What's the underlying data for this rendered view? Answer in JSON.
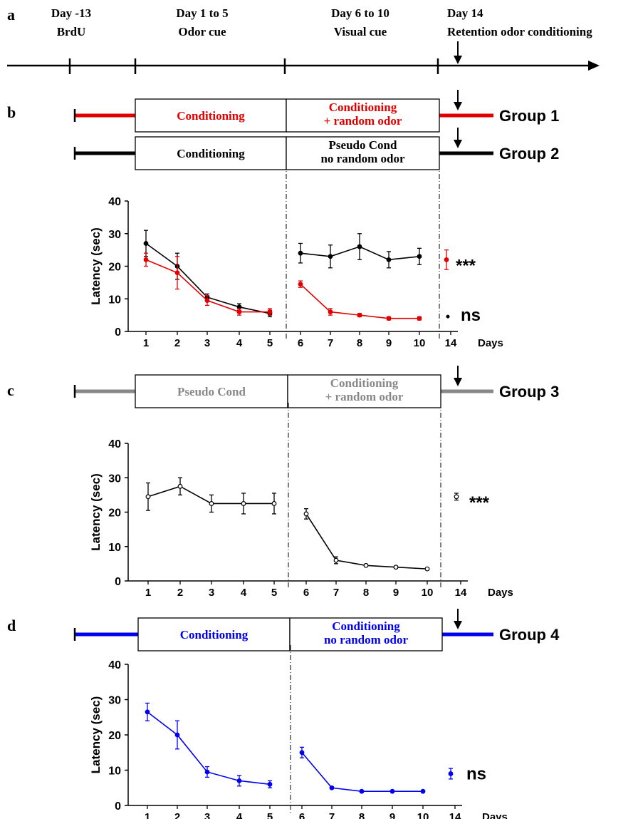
{
  "panel_labels": [
    "a",
    "b",
    "c",
    "d"
  ],
  "timeline": {
    "events": [
      {
        "line1": "Day -13",
        "line2": "BrdU"
      },
      {
        "line1": "Day 1 to  5",
        "line2": "Odor cue"
      },
      {
        "line1": "Day 6 to 10",
        "line2": "Visual cue"
      },
      {
        "line1": "Day 14",
        "line2": "Retention odor conditioning"
      }
    ]
  },
  "protocols": [
    {
      "group": "Group 1",
      "color": "#e00000",
      "text_color": "#e00000",
      "phase1": [
        "Conditioning"
      ],
      "phase2": [
        "Conditioning",
        "+ random odor"
      ]
    },
    {
      "group": "Group 2",
      "color": "#000000",
      "text_color": "#000000",
      "phase1": [
        "Conditioning"
      ],
      "phase2": [
        "Pseudo Cond",
        "no random odor"
      ]
    },
    {
      "group": "Group 3",
      "color": "#888888",
      "text_color": "#888888",
      "phase1": [
        "Pseudo Cond"
      ],
      "phase2": [
        "Conditioning",
        "+ random odor"
      ]
    },
    {
      "group": "Group 4",
      "color": "#0000ee",
      "text_color": "#0000ee",
      "phase1": [
        "Conditioning"
      ],
      "phase2": [
        "Conditioning",
        "no random odor"
      ]
    }
  ],
  "chart_data": [
    {
      "type": "line",
      "panel": "b",
      "ylabel": "Latency (sec)",
      "xlabel": "Days",
      "yticks": [
        0,
        10,
        20,
        30,
        40
      ],
      "ylim": [
        0,
        40
      ],
      "xticks": [
        "1",
        "2",
        "3",
        "4",
        "5",
        "6",
        "7",
        "8",
        "9",
        "10",
        "14"
      ],
      "series": [
        {
          "color": "#000000",
          "phase1": {
            "x": [
              1,
              2,
              3,
              4,
              5
            ],
            "y": [
              27,
              20,
              10.5,
              7.5,
              5.5
            ],
            "err": [
              4,
              4,
              1,
              1,
              1
            ]
          },
          "phase2": {
            "x": [
              6,
              7,
              8,
              9,
              10
            ],
            "y": [
              24,
              23,
              26,
              22,
              23
            ],
            "err": [
              3,
              3.5,
              4,
              2.5,
              2.5
            ]
          },
          "retention": {
            "x": 14,
            "y": 0,
            "err": 0
          }
        },
        {
          "color": "#e00000",
          "phase1": {
            "x": [
              1,
              2,
              3,
              4,
              5
            ],
            "y": [
              22,
              18,
              9.5,
              6,
              6
            ],
            "err": [
              2,
              5,
              1.5,
              1,
              1
            ]
          },
          "phase2": {
            "x": [
              6,
              7,
              8,
              9,
              10
            ],
            "y": [
              14.5,
              6,
              5,
              4,
              4
            ],
            "err": [
              1,
              1,
              0.5,
              0.5,
              0.5
            ]
          },
          "retention": {
            "x": 14,
            "y": 22,
            "err": 3
          }
        }
      ],
      "annotations": [
        {
          "text": "***",
          "color": "#000000",
          "y": 22
        },
        {
          "text": "ns",
          "color": "#000000",
          "y": 5,
          "dot": true
        }
      ]
    },
    {
      "type": "line",
      "panel": "c",
      "ylabel": "Latency (sec)",
      "xlabel": "Days",
      "yticks": [
        0,
        10,
        20,
        30,
        40
      ],
      "ylim": [
        0,
        40
      ],
      "xticks": [
        "1",
        "2",
        "3",
        "4",
        "5",
        "6",
        "7",
        "8",
        "9",
        "10",
        "14"
      ],
      "series": [
        {
          "color": "#000000",
          "open": true,
          "phase1": {
            "x": [
              1,
              2,
              3,
              4,
              5
            ],
            "y": [
              24.5,
              27.5,
              22.5,
              22.5,
              22.5
            ],
            "err": [
              4,
              2.5,
              2.5,
              3,
              3
            ]
          },
          "phase2": {
            "x": [
              6,
              7,
              8,
              9,
              10
            ],
            "y": [
              19.5,
              6,
              4.5,
              4,
              3.5
            ],
            "err": [
              1.5,
              1,
              0.3,
              0.3,
              0.3
            ]
          },
          "retention": {
            "x": 14,
            "y": 24.5,
            "err": 1
          }
        }
      ],
      "annotations": [
        {
          "text": "***",
          "color": "#000000",
          "y": 24.5
        }
      ]
    },
    {
      "type": "line",
      "panel": "d",
      "ylabel": "Latency (sec)",
      "xlabel": "Days",
      "yticks": [
        0,
        10,
        20,
        30,
        40
      ],
      "ylim": [
        0,
        40
      ],
      "xticks": [
        "1",
        "2",
        "3",
        "4",
        "5",
        "6",
        "7",
        "8",
        "9",
        "10",
        "14"
      ],
      "series": [
        {
          "color": "#0000ee",
          "phase1": {
            "x": [
              1,
              2,
              3,
              4,
              5
            ],
            "y": [
              26.5,
              20,
              9.5,
              7,
              6
            ],
            "err": [
              2.5,
              4,
              1.5,
              1.5,
              1
            ]
          },
          "phase2": {
            "x": [
              6,
              7,
              8,
              9,
              10
            ],
            "y": [
              15,
              5,
              4,
              4,
              4
            ],
            "err": [
              1.5,
              0.3,
              0.2,
              0.2,
              0.2
            ]
          },
          "retention": {
            "x": 14,
            "y": 9,
            "err": 1.5
          }
        }
      ],
      "annotations": [
        {
          "text": "ns",
          "color": "#000000",
          "y": 9
        }
      ]
    }
  ]
}
